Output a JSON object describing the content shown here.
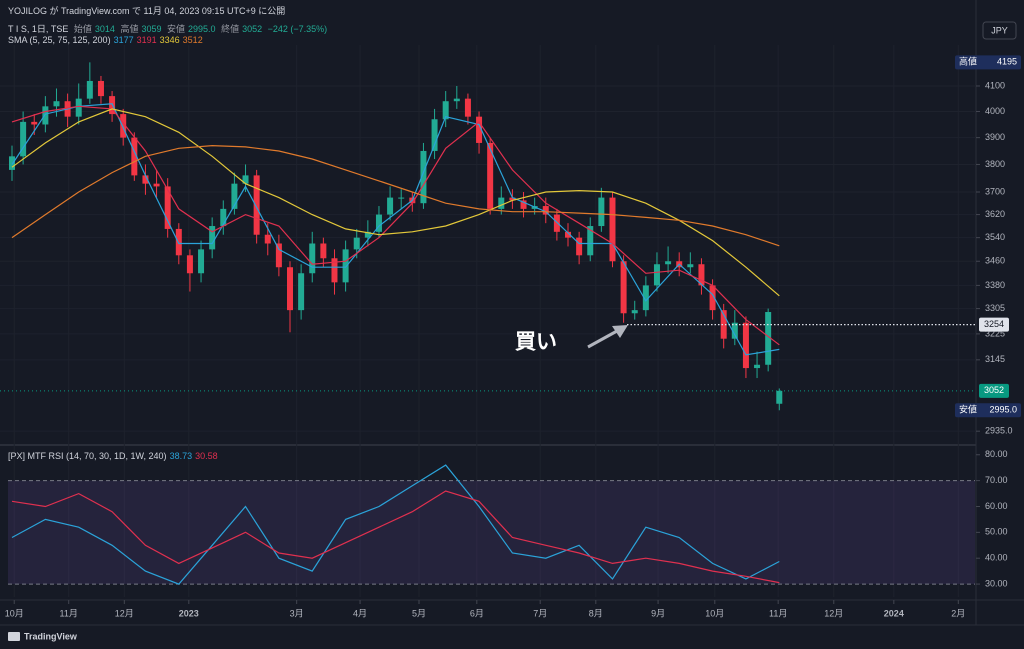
{
  "header": {
    "published": "YOJILOG が TradingView.com で 11月 04, 2023 09:15 UTC+9 に公開",
    "symbol": "T I S, 1日, TSE",
    "ohlc_names": [
      "始値",
      "高値",
      "安値",
      "終値"
    ],
    "change": "−242 (−7.35%)",
    "sma_title": "SMA (5, 25, 75, 125, 200)",
    "rsi_title": "[PX] MTF RSI (14, 70, 30, 1D, 1W, 240)",
    "currency": "JPY",
    "brand": "TradingView"
  },
  "annotation": "買い",
  "chart_data": [
    {
      "type": "candlestick",
      "log_scale": true,
      "grid": true,
      "xlim": [
        -0.36,
        86.6
      ],
      "xticks": [
        {
          "value": 0.2,
          "label": "10月"
        },
        {
          "value": 5.1,
          "label": "11月"
        },
        {
          "value": 10.1,
          "label": "12月"
        },
        {
          "value": 15.9,
          "label": "2023"
        },
        {
          "value": 25.6,
          "label": "3月"
        },
        {
          "value": 31.3,
          "label": "4月"
        },
        {
          "value": 36.6,
          "label": "5月"
        },
        {
          "value": 41.8,
          "label": "6月"
        },
        {
          "value": 47.5,
          "label": "7月"
        },
        {
          "value": 52.5,
          "label": "8月"
        },
        {
          "value": 58.1,
          "label": "9月"
        },
        {
          "value": 63.2,
          "label": "10月"
        },
        {
          "value": 68.9,
          "label": "11月"
        },
        {
          "value": 73.9,
          "label": "12月"
        },
        {
          "value": 79.3,
          "label": "2024"
        },
        {
          "value": 85.1,
          "label": "2月"
        }
      ],
      "ylim": [
        2896,
        4266
      ],
      "yticks": [
        4100,
        4000,
        3900,
        3800,
        3700,
        3620,
        3540,
        3460,
        3380,
        3305,
        3225,
        3145,
        {
          "value": 2935,
          "label": "2935.0"
        }
      ],
      "up_color": "#22ab94",
      "down_color": "#f23645",
      "candles": {
        "open": [
          3780,
          3830,
          3960,
          3950,
          4020,
          4040,
          3980,
          4050,
          4120,
          4060,
          3990,
          3900,
          3760,
          3730,
          3720,
          3570,
          3480,
          3420,
          3500,
          3580,
          3640,
          3730,
          3760,
          3550,
          3520,
          3440,
          3300,
          3420,
          3520,
          3470,
          3390,
          3500,
          3540,
          3560,
          3620,
          3680,
          3680,
          3660,
          3850,
          3970,
          4040,
          4050,
          3980,
          3880,
          3640,
          3680,
          3670,
          3640,
          3650,
          3620,
          3560,
          3540,
          3480,
          3580,
          3680,
          3460,
          3290,
          3300,
          3380,
          3450,
          3460,
          3440,
          3450,
          3380,
          3300,
          3210,
          3260,
          3120,
          3130,
          3014
        ],
        "high": [
          3870,
          4000,
          3990,
          4060,
          4090,
          4070,
          4110,
          4195,
          4140,
          4080,
          4010,
          3920,
          3800,
          3780,
          3750,
          3590,
          3500,
          3530,
          3610,
          3670,
          3770,
          3800,
          3780,
          3590,
          3550,
          3460,
          3450,
          3560,
          3540,
          3500,
          3530,
          3570,
          3600,
          3650,
          3720,
          3710,
          3700,
          3880,
          4010,
          4080,
          4100,
          4070,
          4000,
          3900,
          3720,
          3710,
          3700,
          3680,
          3680,
          3640,
          3590,
          3560,
          3610,
          3715,
          3700,
          3480,
          3330,
          3410,
          3490,
          3510,
          3490,
          3490,
          3470,
          3400,
          3320,
          3300,
          3280,
          3170,
          3305,
          3059
        ],
        "low": [
          3740,
          3800,
          3910,
          3920,
          3980,
          3940,
          3950,
          4030,
          4030,
          3960,
          3870,
          3740,
          3690,
          3680,
          3540,
          3450,
          3360,
          3390,
          3470,
          3550,
          3620,
          3700,
          3520,
          3480,
          3410,
          3230,
          3270,
          3390,
          3440,
          3350,
          3360,
          3470,
          3510,
          3540,
          3600,
          3640,
          3630,
          3640,
          3820,
          3940,
          4010,
          3950,
          3840,
          3620,
          3620,
          3640,
          3610,
          3620,
          3590,
          3530,
          3510,
          3450,
          3460,
          3560,
          3440,
          3260,
          3270,
          3280,
          3360,
          3420,
          3410,
          3420,
          3350,
          3270,
          3180,
          3190,
          3090,
          3090,
          3110,
          2995
        ],
        "close": [
          3830,
          3960,
          3950,
          4020,
          4040,
          3980,
          4050,
          4120,
          4060,
          3990,
          3900,
          3760,
          3730,
          3720,
          3570,
          3480,
          3420,
          3500,
          3580,
          3640,
          3730,
          3760,
          3550,
          3520,
          3440,
          3300,
          3420,
          3520,
          3470,
          3390,
          3500,
          3540,
          3560,
          3620,
          3680,
          3680,
          3660,
          3850,
          3970,
          4040,
          4050,
          3980,
          3880,
          3640,
          3680,
          3670,
          3640,
          3650,
          3620,
          3560,
          3540,
          3480,
          3580,
          3680,
          3460,
          3290,
          3300,
          3380,
          3450,
          3460,
          3440,
          3450,
          3380,
          3300,
          3210,
          3260,
          3120,
          3130,
          3294,
          3052
        ]
      },
      "sma": {
        "x": [
          0,
          3,
          6,
          9,
          12,
          15,
          18,
          21,
          24,
          27,
          30,
          33,
          36,
          39,
          42,
          45,
          48,
          51,
          54,
          57,
          60,
          63,
          66,
          69
        ],
        "series": [
          {
            "color": "#2ba3d9",
            "values": [
              3800,
              3990,
              4020,
              4030,
              3760,
              3520,
              3520,
              3720,
              3500,
              3440,
              3440,
              3580,
              3670,
              3980,
              3950,
              3680,
              3630,
              3520,
              3520,
              3330,
              3450,
              3350,
              3160,
              3177
            ]
          },
          {
            "color": "#e0304f",
            "values": [
              3960,
              4000,
              4020,
              4010,
              3850,
              3640,
              3560,
              3620,
              3580,
              3450,
              3460,
              3540,
              3660,
              3860,
              3960,
              3780,
              3660,
              3590,
              3520,
              3420,
              3430,
              3380,
              3270,
              3191
            ]
          },
          {
            "color": "#e3c83a",
            "values": [
              3790,
              3880,
              3960,
              4010,
              3980,
              3920,
              3830,
              3730,
              3680,
              3620,
              3570,
              3550,
              3560,
              3580,
              3620,
              3670,
              3700,
              3705,
              3700,
              3660,
              3600,
              3530,
              3440,
              3346
            ]
          },
          {
            "color": "#e07a2c",
            "values": [
              3540,
              3620,
              3700,
              3770,
              3830,
              3860,
              3870,
              3865,
              3850,
              3820,
              3780,
              3740,
              3700,
              3660,
              3640,
              3630,
              3630,
              3625,
              3620,
              3610,
              3600,
              3580,
              3550,
              3512
            ]
          }
        ]
      },
      "price_labels": [
        {
          "tag": "高値",
          "value": 4195,
          "color": "#1e2e5c"
        },
        {
          "value": 3254,
          "color": "#e0e3eb"
        },
        {
          "value": 3052,
          "color": "#089981"
        },
        {
          "tag": "安値",
          "value": 2995,
          "label": "2995.0",
          "color": "#1e2e5c"
        }
      ]
    },
    {
      "type": "line",
      "xlim": [
        -0.36,
        86.6
      ],
      "ylim": [
        25,
        83
      ],
      "yticks": [
        {
          "value": 80,
          "label": "80.00"
        },
        {
          "value": 70,
          "label": "70.00"
        },
        {
          "value": 60,
          "label": "60.00"
        },
        {
          "value": 50,
          "label": "50.00"
        },
        {
          "value": 40,
          "label": "40.00"
        },
        {
          "value": 30,
          "label": "30.00"
        }
      ],
      "bands": [
        70,
        30
      ],
      "band_color": "#7e57c2",
      "x": [
        0,
        3,
        6,
        9,
        12,
        15,
        18,
        21,
        24,
        27,
        30,
        33,
        36,
        39,
        42,
        45,
        48,
        51,
        54,
        57,
        60,
        63,
        66,
        69
      ],
      "series": [
        {
          "color": "#2ba3d9",
          "values": [
            48,
            55,
            52,
            45,
            35,
            30,
            45,
            60,
            40,
            35,
            55,
            60,
            68,
            76,
            60,
            42,
            40,
            45,
            32,
            52,
            48,
            38,
            32,
            38.73
          ]
        },
        {
          "color": "#e0304f",
          "values": [
            62,
            60,
            65,
            58,
            45,
            38,
            44,
            50,
            42,
            40,
            46,
            52,
            58,
            66,
            62,
            48,
            45,
            42,
            38,
            40,
            38,
            35,
            33,
            30.58
          ]
        }
      ]
    }
  ]
}
